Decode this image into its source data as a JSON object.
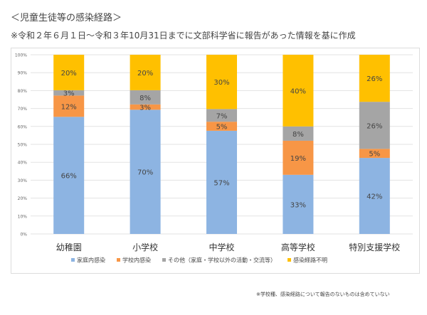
{
  "title": "＜児童生徒等の感染経路＞",
  "subtitle": "※令和２年６月１日～令和３年10月31日までに文部科学省に報告があった情報を基に作成",
  "footnote": "※学校種、感染経路について報告のないものは含めていない",
  "chart_data": {
    "type": "bar",
    "stacked": true,
    "categories": [
      "幼稚園",
      "小学校",
      "中学校",
      "高等学校",
      "特別支援学校"
    ],
    "series": [
      {
        "name": "家庭内感染",
        "color": "#8DB4E2",
        "values": [
          66,
          70,
          57,
          33,
          42
        ]
      },
      {
        "name": "学校内感染",
        "color": "#F79646",
        "values": [
          12,
          3,
          5,
          19,
          5
        ]
      },
      {
        "name": "その他（家庭・学校以外の活動・交流等）",
        "color": "#A5A5A5",
        "values": [
          3,
          8,
          7,
          8,
          26
        ]
      },
      {
        "name": "感染経路不明",
        "color": "#FFC000",
        "values": [
          20,
          20,
          30,
          40,
          26
        ]
      }
    ],
    "ylim": [
      0,
      100
    ],
    "yticks": [
      "0%",
      "10%",
      "20%",
      "30%",
      "40%",
      "50%",
      "60%",
      "70%",
      "80%",
      "90%",
      "100%"
    ],
    "grid": true,
    "legend": "bottom"
  }
}
